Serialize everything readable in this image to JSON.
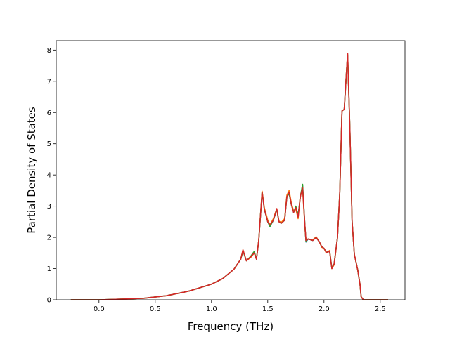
{
  "chart_data": {
    "type": "line",
    "xlabel": "Frequency (THz)",
    "ylabel": "Partial Density of States",
    "xlim": [
      -0.38,
      2.72
    ],
    "ylim": [
      0,
      8.3
    ],
    "xticks": [
      0.0,
      0.5,
      1.0,
      1.5,
      2.0,
      2.5
    ],
    "xtick_labels": [
      "0.0",
      "0.5",
      "1.0",
      "1.5",
      "2.0",
      "2.5"
    ],
    "yticks": [
      0,
      1,
      2,
      3,
      4,
      5,
      6,
      7,
      8
    ],
    "ytick_labels": [
      "0",
      "1",
      "2",
      "3",
      "4",
      "5",
      "6",
      "7",
      "8"
    ],
    "grid": false,
    "series": [
      {
        "color": "#1f77b4",
        "points": [
          [
            -0.25,
            0
          ],
          [
            0,
            0
          ],
          [
            0.2,
            0.02
          ],
          [
            0.4,
            0.05
          ],
          [
            0.6,
            0.13
          ],
          [
            0.8,
            0.28
          ],
          [
            1.0,
            0.5
          ],
          [
            1.1,
            0.68
          ],
          [
            1.2,
            0.98
          ],
          [
            1.26,
            1.3
          ],
          [
            1.28,
            1.58
          ],
          [
            1.31,
            1.25
          ],
          [
            1.35,
            1.38
          ],
          [
            1.38,
            1.52
          ],
          [
            1.4,
            1.3
          ],
          [
            1.42,
            1.9
          ],
          [
            1.45,
            3.42
          ],
          [
            1.47,
            2.9
          ],
          [
            1.5,
            2.5
          ],
          [
            1.52,
            2.35
          ],
          [
            1.55,
            2.55
          ],
          [
            1.58,
            2.9
          ],
          [
            1.6,
            2.5
          ],
          [
            1.62,
            2.45
          ],
          [
            1.65,
            2.55
          ],
          [
            1.67,
            3.3
          ],
          [
            1.69,
            3.4
          ],
          [
            1.71,
            3.05
          ],
          [
            1.73,
            2.8
          ],
          [
            1.75,
            2.95
          ],
          [
            1.77,
            2.7
          ],
          [
            1.79,
            3.3
          ],
          [
            1.81,
            3.65
          ],
          [
            1.83,
            2.4
          ],
          [
            1.84,
            1.85
          ],
          [
            1.86,
            1.95
          ],
          [
            1.9,
            1.9
          ],
          [
            1.93,
            2.0
          ],
          [
            1.96,
            1.85
          ],
          [
            1.98,
            1.7
          ],
          [
            2.0,
            1.65
          ],
          [
            2.02,
            1.52
          ],
          [
            2.05,
            1.55
          ],
          [
            2.07,
            1.0
          ],
          [
            2.09,
            1.15
          ],
          [
            2.12,
            2.0
          ],
          [
            2.14,
            3.4
          ],
          [
            2.16,
            6.05
          ],
          [
            2.18,
            6.1
          ],
          [
            2.2,
            7.3
          ],
          [
            2.21,
            7.85
          ],
          [
            2.23,
            5.5
          ],
          [
            2.25,
            2.5
          ],
          [
            2.27,
            1.45
          ],
          [
            2.3,
            0.95
          ],
          [
            2.32,
            0.5
          ],
          [
            2.33,
            0.1
          ],
          [
            2.35,
            0
          ],
          [
            2.57,
            0
          ]
        ]
      },
      {
        "color": "#ff7f0e",
        "points": [
          [
            -0.25,
            0
          ],
          [
            0,
            0
          ],
          [
            0.2,
            0.02
          ],
          [
            0.4,
            0.05
          ],
          [
            0.6,
            0.13
          ],
          [
            0.8,
            0.28
          ],
          [
            1.0,
            0.5
          ],
          [
            1.1,
            0.68
          ],
          [
            1.2,
            0.98
          ],
          [
            1.26,
            1.3
          ],
          [
            1.28,
            1.6
          ],
          [
            1.31,
            1.25
          ],
          [
            1.35,
            1.36
          ],
          [
            1.38,
            1.5
          ],
          [
            1.4,
            1.32
          ],
          [
            1.42,
            1.9
          ],
          [
            1.45,
            3.48
          ],
          [
            1.47,
            2.95
          ],
          [
            1.5,
            2.55
          ],
          [
            1.52,
            2.4
          ],
          [
            1.55,
            2.6
          ],
          [
            1.58,
            2.92
          ],
          [
            1.6,
            2.52
          ],
          [
            1.62,
            2.48
          ],
          [
            1.65,
            2.6
          ],
          [
            1.67,
            3.35
          ],
          [
            1.69,
            3.5
          ],
          [
            1.71,
            3.1
          ],
          [
            1.73,
            2.85
          ],
          [
            1.75,
            2.9
          ],
          [
            1.77,
            2.6
          ],
          [
            1.79,
            3.35
          ],
          [
            1.81,
            3.55
          ],
          [
            1.83,
            2.35
          ],
          [
            1.84,
            1.9
          ],
          [
            1.86,
            1.95
          ],
          [
            1.9,
            1.92
          ],
          [
            1.93,
            2.02
          ],
          [
            1.96,
            1.85
          ],
          [
            1.98,
            1.68
          ],
          [
            2.0,
            1.65
          ],
          [
            2.02,
            1.5
          ],
          [
            2.05,
            1.58
          ],
          [
            2.07,
            1.0
          ],
          [
            2.09,
            1.12
          ],
          [
            2.12,
            2.0
          ],
          [
            2.14,
            3.4
          ],
          [
            2.16,
            6.05
          ],
          [
            2.18,
            6.1
          ],
          [
            2.2,
            7.3
          ],
          [
            2.21,
            7.88
          ],
          [
            2.23,
            5.5
          ],
          [
            2.25,
            2.5
          ],
          [
            2.27,
            1.45
          ],
          [
            2.3,
            0.95
          ],
          [
            2.32,
            0.5
          ],
          [
            2.33,
            0.1
          ],
          [
            2.35,
            0
          ],
          [
            2.57,
            0
          ]
        ]
      },
      {
        "color": "#2ca02c",
        "points": [
          [
            -0.25,
            0
          ],
          [
            0,
            0
          ],
          [
            0.2,
            0.02
          ],
          [
            0.4,
            0.05
          ],
          [
            0.6,
            0.13
          ],
          [
            0.8,
            0.28
          ],
          [
            1.0,
            0.5
          ],
          [
            1.1,
            0.68
          ],
          [
            1.2,
            0.98
          ],
          [
            1.26,
            1.3
          ],
          [
            1.28,
            1.57
          ],
          [
            1.31,
            1.25
          ],
          [
            1.35,
            1.4
          ],
          [
            1.38,
            1.55
          ],
          [
            1.4,
            1.3
          ],
          [
            1.42,
            1.9
          ],
          [
            1.45,
            3.45
          ],
          [
            1.47,
            2.9
          ],
          [
            1.5,
            2.5
          ],
          [
            1.52,
            2.35
          ],
          [
            1.55,
            2.55
          ],
          [
            1.58,
            2.9
          ],
          [
            1.6,
            2.5
          ],
          [
            1.62,
            2.45
          ],
          [
            1.65,
            2.55
          ],
          [
            1.67,
            3.3
          ],
          [
            1.69,
            3.4
          ],
          [
            1.71,
            3.05
          ],
          [
            1.73,
            2.8
          ],
          [
            1.75,
            3.0
          ],
          [
            1.77,
            2.7
          ],
          [
            1.79,
            3.3
          ],
          [
            1.81,
            3.7
          ],
          [
            1.83,
            2.4
          ],
          [
            1.84,
            1.88
          ],
          [
            1.86,
            1.95
          ],
          [
            1.9,
            1.9
          ],
          [
            1.93,
            2.0
          ],
          [
            1.96,
            1.85
          ],
          [
            1.98,
            1.7
          ],
          [
            2.0,
            1.65
          ],
          [
            2.02,
            1.52
          ],
          [
            2.05,
            1.55
          ],
          [
            2.07,
            1.02
          ],
          [
            2.09,
            1.15
          ],
          [
            2.12,
            2.0
          ],
          [
            2.14,
            3.4
          ],
          [
            2.16,
            6.05
          ],
          [
            2.18,
            6.1
          ],
          [
            2.2,
            7.3
          ],
          [
            2.21,
            7.85
          ],
          [
            2.23,
            5.5
          ],
          [
            2.25,
            2.5
          ],
          [
            2.27,
            1.45
          ],
          [
            2.3,
            0.95
          ],
          [
            2.32,
            0.5
          ],
          [
            2.33,
            0.1
          ],
          [
            2.35,
            0
          ],
          [
            2.57,
            0
          ]
        ]
      },
      {
        "color": "#d62728",
        "points": [
          [
            -0.25,
            0
          ],
          [
            0,
            0
          ],
          [
            0.2,
            0.02
          ],
          [
            0.4,
            0.05
          ],
          [
            0.6,
            0.13
          ],
          [
            0.8,
            0.28
          ],
          [
            1.0,
            0.5
          ],
          [
            1.1,
            0.68
          ],
          [
            1.2,
            0.98
          ],
          [
            1.26,
            1.3
          ],
          [
            1.28,
            1.6
          ],
          [
            1.31,
            1.25
          ],
          [
            1.35,
            1.38
          ],
          [
            1.38,
            1.5
          ],
          [
            1.4,
            1.3
          ],
          [
            1.42,
            1.9
          ],
          [
            1.45,
            3.45
          ],
          [
            1.47,
            2.9
          ],
          [
            1.5,
            2.5
          ],
          [
            1.52,
            2.4
          ],
          [
            1.55,
            2.55
          ],
          [
            1.58,
            2.92
          ],
          [
            1.6,
            2.5
          ],
          [
            1.62,
            2.45
          ],
          [
            1.65,
            2.55
          ],
          [
            1.67,
            3.3
          ],
          [
            1.69,
            3.45
          ],
          [
            1.71,
            3.05
          ],
          [
            1.73,
            2.8
          ],
          [
            1.75,
            2.95
          ],
          [
            1.77,
            2.65
          ],
          [
            1.79,
            3.3
          ],
          [
            1.81,
            3.6
          ],
          [
            1.83,
            2.4
          ],
          [
            1.84,
            1.9
          ],
          [
            1.86,
            1.95
          ],
          [
            1.9,
            1.9
          ],
          [
            1.93,
            2.0
          ],
          [
            1.96,
            1.85
          ],
          [
            1.98,
            1.7
          ],
          [
            2.0,
            1.65
          ],
          [
            2.02,
            1.52
          ],
          [
            2.05,
            1.55
          ],
          [
            2.07,
            1.0
          ],
          [
            2.09,
            1.15
          ],
          [
            2.12,
            2.0
          ],
          [
            2.14,
            3.4
          ],
          [
            2.16,
            6.05
          ],
          [
            2.18,
            6.1
          ],
          [
            2.2,
            7.3
          ],
          [
            2.21,
            7.9
          ],
          [
            2.23,
            5.5
          ],
          [
            2.25,
            2.5
          ],
          [
            2.27,
            1.45
          ],
          [
            2.3,
            0.95
          ],
          [
            2.32,
            0.5
          ],
          [
            2.33,
            0.1
          ],
          [
            2.35,
            0
          ],
          [
            2.57,
            0
          ]
        ]
      }
    ]
  }
}
